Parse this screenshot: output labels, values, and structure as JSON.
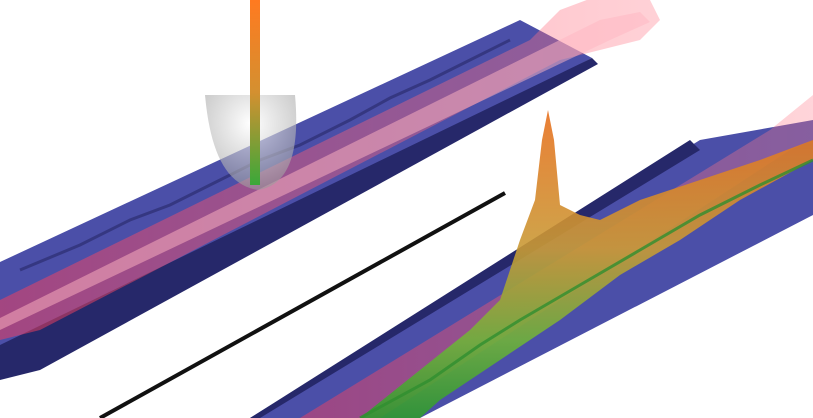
{
  "scene": {
    "description_visible_text": "",
    "colors": {
      "background": "#ffffff",
      "strip": "#4a4fa6",
      "strip_dark": "#232566",
      "beam": "#ff5a6e",
      "beam_core": "#ffb0bc",
      "peak_top": "#f07a2a",
      "peak_mid": "#c8a23a",
      "peak_base": "#3fae3a",
      "tip_gray": "#c9c9c9",
      "divider": "#111111"
    }
  }
}
